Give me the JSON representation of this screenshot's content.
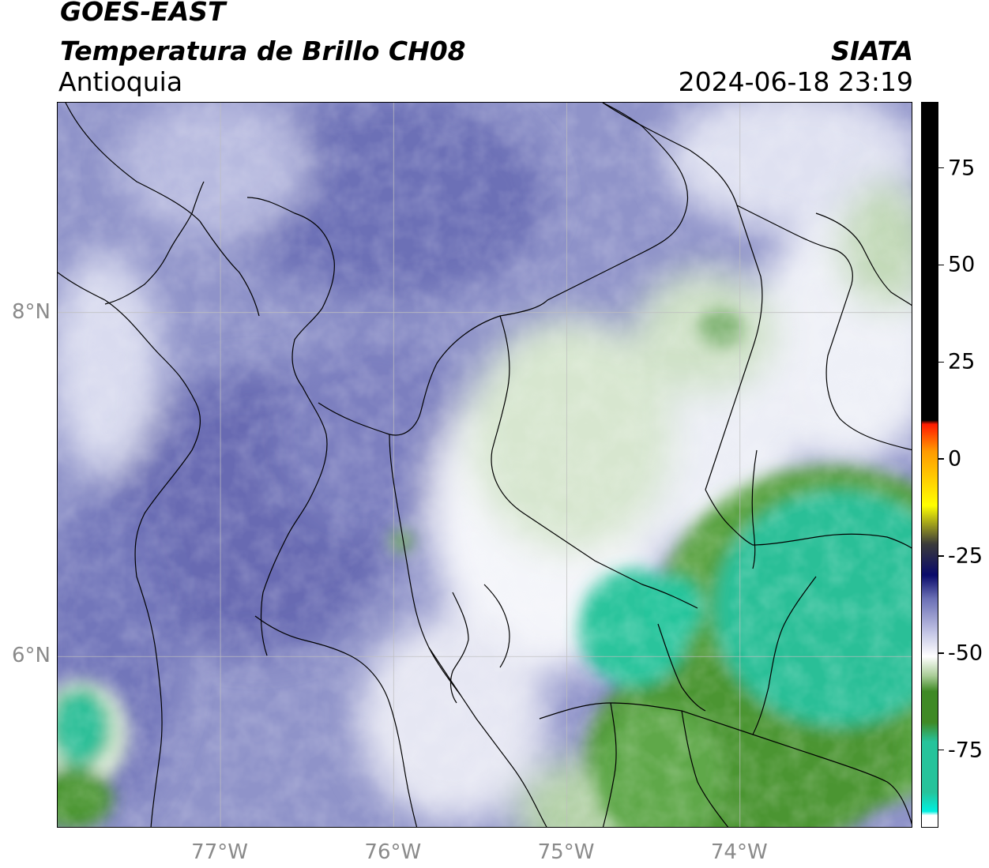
{
  "header": {
    "satellite": "GOES-EAST",
    "product": "Temperatura de Brillo CH08",
    "region": "Antioquia",
    "organization": "SIATA",
    "datetime": "2024-06-18 23:19"
  },
  "map": {
    "longitude_labels": [
      "77°W",
      "76°W",
      "75°W",
      "74°W"
    ],
    "latitude_labels": [
      "8°N",
      "6°N"
    ],
    "longitude_values": [
      -77,
      -76,
      -75,
      -74
    ],
    "latitude_values": [
      8,
      6
    ],
    "lon_range": [
      -77.94,
      -73.0
    ],
    "lat_range": [
      5.0,
      9.22
    ]
  },
  "colorbar": {
    "tick_labels": [
      "75",
      "50",
      "25",
      "0",
      "-25",
      "-50",
      "-75"
    ],
    "tick_values": [
      75,
      50,
      25,
      0,
      -25,
      -50,
      -75
    ],
    "range": [
      -95,
      92
    ],
    "colors": {
      "black": "#000000",
      "red": "#ff1a00",
      "orange": "#ff9a00",
      "yellow": "#ffff00",
      "dark_navy": "#0a0a6a",
      "periwinkle": "#6a6fb5",
      "white": "#ffffff",
      "green": "#3f8a25",
      "teal": "#26c39b",
      "cyan": "#00f0e0"
    }
  }
}
